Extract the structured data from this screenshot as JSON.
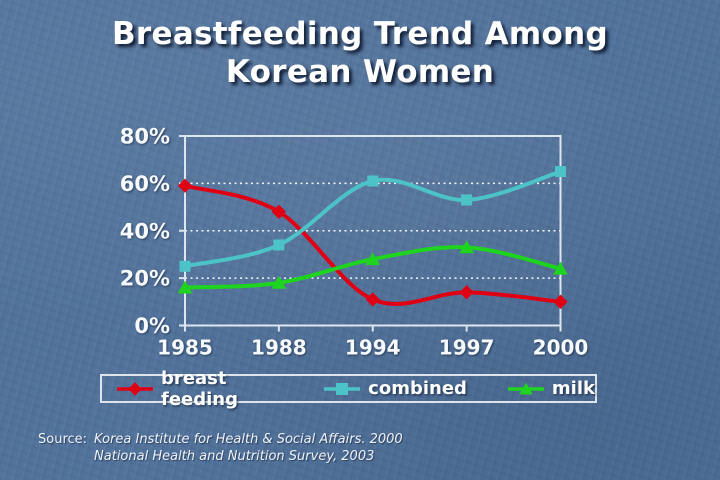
{
  "slide": {
    "title_lines": [
      "Breastfeeding Trend Among",
      "Korean Women"
    ],
    "background_color": "#53749d",
    "title_color": "#ffffff",
    "title_shadow_color": "#0d1930"
  },
  "chart_data": {
    "type": "line",
    "title": "Breastfeeding Trend Among Korean Women",
    "xlabel": "",
    "ylabel": "",
    "categories": [
      "1985",
      "1988",
      "1994",
      "1997",
      "2000"
    ],
    "series": [
      {
        "name": "breast feeding",
        "color": "#e00014",
        "marker": "diamond",
        "values": [
          59,
          48,
          11,
          14,
          10
        ]
      },
      {
        "name": "combined",
        "color": "#4cc4c7",
        "marker": "square",
        "values": [
          25,
          34,
          61,
          53,
          65
        ]
      },
      {
        "name": "milk",
        "color": "#1ed41e",
        "marker": "triangle",
        "values": [
          16,
          18,
          28,
          33,
          24
        ]
      }
    ],
    "ylim": [
      0,
      80
    ],
    "y_ticks": [
      {
        "value": 0,
        "label": "0%"
      },
      {
        "value": 20,
        "label": "20%"
      },
      {
        "value": 40,
        "label": "40%"
      },
      {
        "value": 60,
        "label": "60%"
      },
      {
        "value": 80,
        "label": "80%"
      }
    ],
    "grid": "dotted horizontal lines at 20%, 40%, 60%",
    "legend_position": "bottom",
    "style": {
      "grid_color": "#ffffff",
      "axis_color": "#dde6ee",
      "label_color": "#f7fafc"
    }
  },
  "source": {
    "prefix": "Source:",
    "line1": "Korea Institute for Health & Social Affairs. 2000",
    "line2": "National Health and Nutrition Survey, 2003"
  }
}
